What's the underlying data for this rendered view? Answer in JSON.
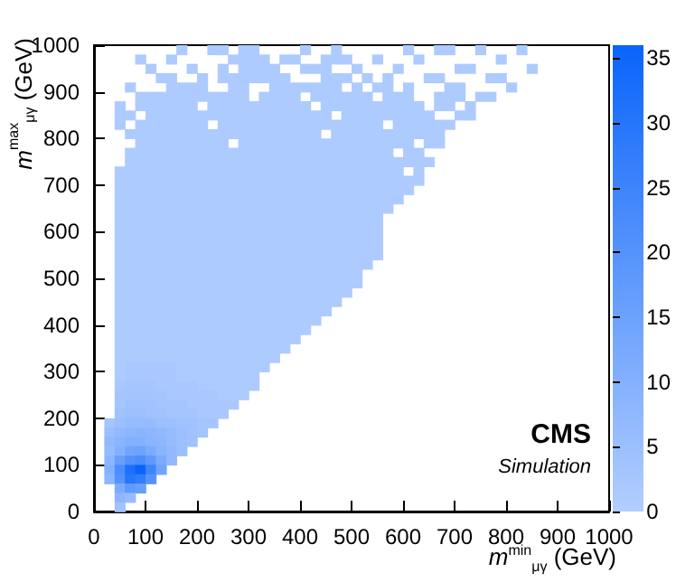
{
  "chart_data": {
    "type": "heatmap",
    "xlabel": "m$^{min}$$_{μγ}$ (GeV)",
    "ylabel": "m$^{max}$$_{μγ}$ (GeV)",
    "annotations": [
      "CMS",
      "Simulation"
    ],
    "xlim": [
      0,
      1000
    ],
    "xticks": [
      0,
      100,
      200,
      300,
      400,
      500,
      600,
      700,
      800,
      900,
      1000
    ],
    "ylim": [
      0,
      1000
    ],
    "yticks": [
      0,
      100,
      200,
      300,
      400,
      500,
      600,
      700,
      800,
      900,
      1000
    ],
    "clim": [
      0,
      36
    ],
    "cticks": [
      0,
      5,
      10,
      15,
      20,
      25,
      30,
      35
    ],
    "cells": [
      [
        null,
        null,
        null,
        null,
        null,
        null,
        null,
        null,
        1,
        null,
        null,
        1,
        1,
        null,
        1,
        1,
        null,
        null,
        null,
        null,
        1,
        null,
        null,
        1,
        null,
        null,
        null,
        null,
        null,
        null,
        1,
        null,
        null,
        1,
        1,
        null,
        null,
        1,
        null,
        null,
        null,
        1,
        null,
        null,
        null,
        null,
        null,
        null,
        null,
        null
      ],
      [
        null,
        null,
        null,
        null,
        1,
        null,
        null,
        1,
        null,
        null,
        null,
        null,
        null,
        1,
        1,
        1,
        1,
        null,
        1,
        1,
        null,
        null,
        1,
        1,
        1,
        null,
        null,
        1,
        null,
        null,
        null,
        1,
        null,
        null,
        null,
        null,
        null,
        null,
        null,
        1,
        null,
        null,
        null,
        null,
        null,
        null,
        null,
        null,
        null,
        null
      ],
      [
        null,
        null,
        null,
        null,
        null,
        1,
        null,
        null,
        null,
        1,
        null,
        null,
        1,
        null,
        1,
        1,
        1,
        1,
        null,
        null,
        1,
        1,
        1,
        null,
        null,
        1,
        null,
        null,
        null,
        1,
        null,
        null,
        null,
        null,
        null,
        1,
        1,
        null,
        null,
        null,
        null,
        null,
        1,
        null,
        null,
        null,
        null,
        null,
        null,
        null
      ],
      [
        null,
        null,
        null,
        null,
        null,
        null,
        1,
        1,
        null,
        null,
        1,
        null,
        1,
        1,
        1,
        1,
        1,
        1,
        1,
        null,
        null,
        null,
        1,
        1,
        1,
        null,
        1,
        null,
        1,
        null,
        null,
        null,
        1,
        1,
        null,
        null,
        null,
        null,
        1,
        1,
        null,
        null,
        null,
        null,
        null,
        null,
        null,
        null,
        null,
        null
      ],
      [
        null,
        null,
        null,
        1,
        null,
        null,
        null,
        1,
        1,
        1,
        1,
        null,
        null,
        1,
        1,
        null,
        null,
        1,
        1,
        1,
        1,
        1,
        1,
        1,
        null,
        1,
        null,
        1,
        1,
        null,
        1,
        null,
        null,
        null,
        1,
        1,
        null,
        null,
        null,
        null,
        1,
        null,
        null,
        null,
        null,
        null,
        null,
        null,
        null,
        null
      ],
      [
        null,
        null,
        null,
        null,
        1,
        1,
        1,
        1,
        1,
        1,
        1,
        1,
        1,
        1,
        1,
        null,
        1,
        1,
        1,
        1,
        null,
        1,
        1,
        1,
        1,
        1,
        1,
        null,
        1,
        1,
        1,
        null,
        null,
        1,
        1,
        1,
        null,
        1,
        1,
        null,
        null,
        null,
        null,
        null,
        null,
        null,
        null,
        null,
        null,
        null
      ],
      [
        null,
        null,
        1,
        null,
        1,
        1,
        1,
        1,
        1,
        1,
        null,
        1,
        1,
        1,
        1,
        1,
        1,
        1,
        1,
        1,
        1,
        null,
        1,
        1,
        1,
        1,
        1,
        1,
        1,
        1,
        1,
        1,
        null,
        1,
        1,
        null,
        1,
        null,
        null,
        null,
        null,
        null,
        null,
        null,
        null,
        null,
        null,
        null,
        null,
        null
      ],
      [
        null,
        null,
        1,
        1,
        null,
        1,
        1,
        1,
        1,
        1,
        1,
        1,
        1,
        1,
        1,
        1,
        1,
        1,
        1,
        1,
        1,
        1,
        1,
        null,
        1,
        1,
        1,
        1,
        1,
        1,
        1,
        1,
        1,
        null,
        null,
        1,
        1,
        null,
        null,
        null,
        null,
        null,
        null,
        null,
        null,
        null,
        null,
        null,
        null,
        null
      ],
      [
        null,
        null,
        1,
        null,
        1,
        1,
        1,
        1,
        1,
        1,
        1,
        null,
        1,
        1,
        1,
        1,
        1,
        1,
        1,
        1,
        1,
        1,
        1,
        1,
        1,
        1,
        1,
        1,
        null,
        1,
        1,
        1,
        1,
        1,
        1,
        null,
        null,
        null,
        null,
        null,
        null,
        null,
        null,
        null,
        null,
        null,
        null,
        null,
        null,
        null
      ],
      [
        null,
        null,
        null,
        1,
        1,
        1,
        1,
        1,
        1,
        1,
        1,
        1,
        1,
        1,
        1,
        1,
        1,
        1,
        1,
        1,
        1,
        1,
        null,
        1,
        1,
        1,
        1,
        1,
        1,
        1,
        1,
        1,
        1,
        1,
        null,
        null,
        null,
        null,
        null,
        null,
        null,
        null,
        null,
        null,
        null,
        null,
        null,
        null,
        null,
        null
      ],
      [
        null,
        null,
        null,
        null,
        1,
        1,
        1,
        1,
        1,
        1,
        1,
        1,
        1,
        null,
        1,
        1,
        1,
        1,
        1,
        1,
        1,
        1,
        1,
        1,
        1,
        1,
        1,
        1,
        1,
        1,
        1,
        null,
        1,
        1,
        null,
        null,
        null,
        null,
        null,
        null,
        null,
        null,
        null,
        null,
        null,
        null,
        null,
        null,
        null,
        null
      ],
      [
        null,
        null,
        null,
        1,
        1,
        1,
        1,
        1,
        1,
        1,
        1,
        1,
        1,
        1,
        1,
        1,
        1,
        1,
        1,
        1,
        1,
        1,
        1,
        1,
        1,
        1,
        1,
        1,
        1,
        null,
        1,
        1,
        null,
        null,
        null,
        null,
        null,
        null,
        null,
        null,
        null,
        null,
        null,
        null,
        null,
        null,
        null,
        null,
        null,
        null
      ],
      [
        null,
        null,
        null,
        1,
        1,
        1,
        1,
        1,
        1,
        1,
        1,
        1,
        1,
        1,
        1,
        1,
        1,
        1,
        1,
        1,
        1,
        1,
        1,
        1,
        1,
        1,
        1,
        1,
        1,
        1,
        1,
        1,
        1,
        null,
        null,
        null,
        null,
        null,
        null,
        null,
        null,
        null,
        null,
        null,
        null,
        null,
        null,
        null,
        null,
        null
      ],
      [
        null,
        null,
        1,
        1,
        1,
        1,
        1,
        1,
        1,
        1,
        1,
        1,
        1,
        1,
        1,
        1,
        1,
        1,
        1,
        1,
        1,
        1,
        1,
        1,
        1,
        1,
        1,
        1,
        1,
        1,
        null,
        1,
        null,
        null,
        null,
        null,
        null,
        null,
        null,
        null,
        null,
        null,
        null,
        null,
        null,
        null,
        null,
        null,
        null,
        null
      ],
      [
        null,
        null,
        1,
        1,
        1,
        1,
        1,
        1,
        1,
        1,
        1,
        1,
        1,
        1,
        1,
        1,
        1,
        1,
        1,
        1,
        1,
        1,
        1,
        1,
        1,
        1,
        1,
        1,
        1,
        1,
        1,
        1,
        null,
        null,
        null,
        null,
        null,
        null,
        null,
        null,
        null,
        null,
        null,
        null,
        null,
        null,
        null,
        null,
        null,
        null
      ],
      [
        null,
        null,
        1,
        1,
        1,
        1,
        1,
        1,
        1,
        1,
        1,
        1,
        1,
        1,
        1,
        1,
        1,
        1,
        1,
        1,
        1,
        1,
        1,
        1,
        1,
        1,
        1,
        1,
        1,
        1,
        1,
        null,
        null,
        null,
        null,
        null,
        null,
        null,
        null,
        null,
        null,
        null,
        null,
        null,
        null,
        null,
        null,
        null,
        null,
        null
      ],
      [
        null,
        null,
        1,
        1,
        1,
        1,
        1,
        1,
        1,
        1,
        1,
        1,
        1,
        1,
        1,
        1,
        1,
        1,
        1,
        1,
        1,
        1,
        1,
        1,
        1,
        1,
        1,
        1,
        1,
        1,
        null,
        null,
        null,
        null,
        null,
        null,
        null,
        null,
        null,
        null,
        null,
        null,
        null,
        null,
        null,
        null,
        null,
        null,
        null,
        null
      ],
      [
        null,
        null,
        1,
        1,
        1,
        1,
        1,
        1,
        1,
        1,
        1,
        1,
        1,
        1,
        1,
        1,
        1,
        1,
        1,
        1,
        1,
        1,
        1,
        1,
        1,
        1,
        1,
        1,
        1,
        null,
        null,
        null,
        null,
        null,
        null,
        null,
        null,
        null,
        null,
        null,
        null,
        null,
        null,
        null,
        null,
        null,
        null,
        null,
        null,
        null
      ],
      [
        null,
        null,
        1,
        1,
        1,
        1,
        1,
        1,
        1,
        1,
        1,
        1,
        1,
        1,
        1,
        1,
        1,
        1,
        1,
        1,
        1,
        1,
        1,
        1,
        1,
        1,
        1,
        1,
        null,
        null,
        null,
        null,
        null,
        null,
        null,
        null,
        null,
        null,
        null,
        null,
        null,
        null,
        null,
        null,
        null,
        null,
        null,
        null,
        null,
        null
      ],
      [
        null,
        null,
        1,
        1,
        1,
        1,
        1,
        1,
        1,
        1,
        1,
        1,
        1,
        1,
        1,
        1,
        1,
        1,
        1,
        1,
        1,
        1,
        1,
        1,
        1,
        1,
        1,
        1,
        null,
        null,
        null,
        null,
        null,
        null,
        null,
        null,
        null,
        null,
        null,
        null,
        null,
        null,
        null,
        null,
        null,
        null,
        null,
        null,
        null,
        null
      ],
      [
        null,
        null,
        1,
        1,
        1,
        1,
        1,
        1,
        1,
        1,
        1,
        1,
        1,
        1,
        1,
        1,
        1,
        1,
        1,
        1,
        1,
        1,
        1,
        1,
        1,
        1,
        1,
        1,
        null,
        null,
        null,
        null,
        null,
        null,
        null,
        null,
        null,
        null,
        null,
        null,
        null,
        null,
        null,
        null,
        null,
        null,
        null,
        null,
        null,
        null
      ],
      [
        null,
        null,
        1,
        1,
        1,
        1,
        1,
        1,
        1,
        1,
        1,
        1,
        1,
        1,
        1,
        1,
        1,
        1,
        1,
        1,
        1,
        1,
        1,
        1,
        1,
        1,
        1,
        1,
        null,
        null,
        null,
        null,
        null,
        null,
        null,
        null,
        null,
        null,
        null,
        null,
        null,
        null,
        null,
        null,
        null,
        null,
        null,
        null,
        null,
        null
      ],
      [
        null,
        null,
        1,
        1,
        1,
        1,
        1,
        1,
        1,
        1,
        1,
        1,
        1,
        1,
        1,
        1,
        1,
        1,
        1,
        1,
        1,
        1,
        1,
        1,
        1,
        1,
        1,
        1,
        null,
        null,
        null,
        null,
        null,
        null,
        null,
        null,
        null,
        null,
        null,
        null,
        null,
        null,
        null,
        null,
        null,
        null,
        null,
        null,
        null,
        null
      ],
      [
        null,
        null,
        1,
        1,
        1,
        1,
        1,
        1,
        1,
        1,
        1,
        1,
        1,
        1,
        1,
        1,
        1,
        1,
        1,
        1,
        1,
        1,
        1,
        1,
        1,
        1,
        1,
        null,
        null,
        null,
        null,
        null,
        null,
        null,
        null,
        null,
        null,
        null,
        null,
        null,
        null,
        null,
        null,
        null,
        null,
        null,
        null,
        null,
        null,
        null
      ],
      [
        null,
        null,
        1,
        1,
        1,
        1,
        1,
        1,
        1,
        1,
        1,
        1,
        1,
        1,
        1,
        1,
        1,
        1,
        1,
        1,
        1,
        1,
        1,
        1,
        1,
        1,
        null,
        null,
        null,
        null,
        null,
        null,
        null,
        null,
        null,
        null,
        null,
        null,
        null,
        null,
        null,
        null,
        null,
        null,
        null,
        null,
        null,
        null,
        null,
        null
      ],
      [
        null,
        null,
        1,
        1,
        1,
        1,
        1,
        1,
        1,
        1,
        1,
        1,
        1,
        1,
        1,
        1,
        1,
        1,
        1,
        1,
        1,
        1,
        1,
        1,
        1,
        1,
        null,
        null,
        null,
        null,
        null,
        null,
        null,
        null,
        null,
        null,
        null,
        null,
        null,
        null,
        null,
        null,
        null,
        null,
        null,
        null,
        null,
        null,
        null,
        null
      ],
      [
        null,
        null,
        1,
        1,
        1,
        1,
        1,
        1,
        1,
        1,
        1,
        1,
        1,
        1,
        1,
        1,
        1,
        1,
        1,
        1,
        1,
        1,
        1,
        1,
        1,
        null,
        null,
        null,
        null,
        null,
        null,
        null,
        null,
        null,
        null,
        null,
        null,
        null,
        null,
        null,
        null,
        null,
        null,
        null,
        null,
        null,
        null,
        null,
        null,
        null
      ],
      [
        null,
        null,
        1,
        1,
        1,
        1,
        1,
        1,
        1,
        1,
        1,
        1,
        1,
        1,
        1,
        1,
        1,
        1,
        1,
        1,
        1,
        1,
        1,
        1,
        null,
        null,
        null,
        null,
        null,
        null,
        null,
        null,
        null,
        null,
        null,
        null,
        null,
        null,
        null,
        null,
        null,
        null,
        null,
        null,
        null,
        null,
        null,
        null,
        null,
        null
      ],
      [
        null,
        null,
        1,
        1,
        1,
        1,
        1,
        1,
        1,
        1,
        1,
        1,
        1,
        1,
        1,
        1,
        1,
        1,
        1,
        1,
        1,
        1,
        1,
        null,
        null,
        null,
        null,
        null,
        null,
        null,
        null,
        null,
        null,
        null,
        null,
        null,
        null,
        null,
        null,
        null,
        null,
        null,
        null,
        null,
        null,
        null,
        null,
        null,
        null,
        null
      ],
      [
        null,
        null,
        1,
        1,
        1,
        1,
        1,
        1,
        1,
        1,
        1,
        1,
        1,
        1,
        1,
        1,
        1,
        1,
        1,
        1,
        1,
        1,
        null,
        null,
        null,
        null,
        null,
        null,
        null,
        null,
        null,
        null,
        null,
        null,
        null,
        null,
        null,
        null,
        null,
        null,
        null,
        null,
        null,
        null,
        null,
        null,
        null,
        null,
        null,
        null
      ],
      [
        null,
        null,
        1,
        1,
        1,
        1,
        1,
        1,
        1,
        1,
        1,
        1,
        1,
        1,
        1,
        1,
        1,
        1,
        1,
        1,
        1,
        null,
        null,
        null,
        null,
        null,
        null,
        null,
        null,
        null,
        null,
        null,
        null,
        null,
        null,
        null,
        null,
        null,
        null,
        null,
        null,
        null,
        null,
        null,
        null,
        null,
        null,
        null,
        null,
        null
      ],
      [
        null,
        null,
        1,
        1,
        1,
        1,
        1,
        1,
        1,
        1,
        1,
        1,
        1,
        1,
        1,
        1,
        1,
        1,
        1,
        1,
        null,
        null,
        null,
        null,
        null,
        null,
        null,
        null,
        null,
        null,
        null,
        null,
        null,
        null,
        null,
        null,
        null,
        null,
        null,
        null,
        null,
        null,
        null,
        null,
        null,
        null,
        null,
        null,
        null,
        null
      ],
      [
        null,
        null,
        1,
        1,
        1,
        1,
        1,
        1,
        1,
        1,
        1,
        1,
        1,
        1,
        1,
        1,
        1,
        1,
        1,
        null,
        null,
        null,
        null,
        null,
        null,
        null,
        null,
        null,
        null,
        null,
        null,
        null,
        null,
        null,
        null,
        null,
        null,
        null,
        null,
        null,
        null,
        null,
        null,
        null,
        null,
        null,
        null,
        null,
        null,
        null
      ],
      [
        null,
        null,
        1,
        1,
        1,
        1,
        1,
        1,
        1,
        1,
        1,
        1,
        1,
        1,
        1,
        1,
        1,
        1,
        null,
        null,
        null,
        null,
        null,
        null,
        null,
        null,
        null,
        null,
        null,
        null,
        null,
        null,
        null,
        null,
        null,
        null,
        null,
        null,
        null,
        null,
        null,
        null,
        null,
        null,
        null,
        null,
        null,
        null,
        null,
        null
      ],
      [
        null,
        null,
        1,
        2,
        2,
        2,
        2,
        2,
        1,
        1,
        1,
        1,
        1,
        1,
        1,
        1,
        1,
        null,
        null,
        null,
        null,
        null,
        null,
        null,
        null,
        null,
        null,
        null,
        null,
        null,
        null,
        null,
        null,
        null,
        null,
        null,
        null,
        null,
        null,
        null,
        null,
        null,
        null,
        null,
        null,
        null,
        null,
        null,
        null,
        null
      ],
      [
        null,
        null,
        1,
        2,
        2,
        2,
        2,
        2,
        1,
        1,
        1,
        1,
        1,
        1,
        1,
        1,
        null,
        null,
        null,
        null,
        null,
        null,
        null,
        null,
        null,
        null,
        null,
        null,
        null,
        null,
        null,
        null,
        null,
        null,
        null,
        null,
        null,
        null,
        null,
        null,
        null,
        null,
        null,
        null,
        null,
        null,
        null,
        null,
        null,
        null
      ],
      [
        null,
        null,
        2,
        3,
        3,
        3,
        2,
        2,
        2,
        2,
        1,
        1,
        1,
        1,
        1,
        1,
        null,
        null,
        null,
        null,
        null,
        null,
        null,
        null,
        null,
        null,
        null,
        null,
        null,
        null,
        null,
        null,
        null,
        null,
        null,
        null,
        null,
        null,
        null,
        null,
        null,
        null,
        null,
        null,
        null,
        null,
        null,
        null,
        null,
        null
      ],
      [
        null,
        null,
        3,
        3,
        3,
        3,
        3,
        2,
        2,
        2,
        2,
        2,
        1,
        1,
        1,
        null,
        null,
        null,
        null,
        null,
        null,
        null,
        null,
        null,
        null,
        null,
        null,
        null,
        null,
        null,
        null,
        null,
        null,
        null,
        null,
        null,
        null,
        null,
        null,
        null,
        null,
        null,
        null,
        null,
        null,
        null,
        null,
        null,
        null,
        null
      ],
      [
        null,
        null,
        3,
        4,
        4,
        4,
        3,
        3,
        3,
        2,
        2,
        2,
        2,
        2,
        null,
        null,
        null,
        null,
        null,
        null,
        null,
        null,
        null,
        null,
        null,
        null,
        null,
        null,
        null,
        null,
        null,
        null,
        null,
        null,
        null,
        null,
        null,
        null,
        null,
        null,
        null,
        null,
        null,
        null,
        null,
        null,
        null,
        null,
        null,
        null
      ],
      [
        null,
        null,
        4,
        5,
        5,
        4,
        4,
        3,
        3,
        3,
        2,
        2,
        2,
        null,
        null,
        null,
        null,
        null,
        null,
        null,
        null,
        null,
        null,
        null,
        null,
        null,
        null,
        null,
        null,
        null,
        null,
        null,
        null,
        null,
        null,
        null,
        null,
        null,
        null,
        null,
        null,
        null,
        null,
        null,
        null,
        null,
        null,
        null,
        null,
        null
      ],
      [
        null,
        3,
        5,
        6,
        6,
        6,
        5,
        5,
        4,
        4,
        3,
        3,
        null,
        null,
        null,
        null,
        null,
        null,
        null,
        null,
        null,
        null,
        null,
        null,
        null,
        null,
        null,
        null,
        null,
        null,
        null,
        null,
        null,
        null,
        null,
        null,
        null,
        null,
        null,
        null,
        null,
        null,
        null,
        null,
        null,
        null,
        null,
        null,
        null,
        null
      ],
      [
        null,
        5,
        7,
        8,
        9,
        8,
        7,
        6,
        5,
        4,
        3,
        null,
        null,
        null,
        null,
        null,
        null,
        null,
        null,
        null,
        null,
        null,
        null,
        null,
        null,
        null,
        null,
        null,
        null,
        null,
        null,
        null,
        null,
        null,
        null,
        null,
        null,
        null,
        null,
        null,
        null,
        null,
        null,
        null,
        null,
        null,
        null,
        null,
        null,
        null
      ],
      [
        null,
        7,
        9,
        10,
        10,
        9,
        8,
        6,
        5,
        4,
        null,
        null,
        null,
        null,
        null,
        null,
        null,
        null,
        null,
        null,
        null,
        null,
        null,
        null,
        null,
        null,
        null,
        null,
        null,
        null,
        null,
        null,
        null,
        null,
        null,
        null,
        null,
        null,
        null,
        null,
        null,
        null,
        null,
        null,
        null,
        null,
        null,
        null,
        null,
        null
      ],
      [
        null,
        6,
        10,
        14,
        15,
        12,
        9,
        7,
        5,
        null,
        null,
        null,
        null,
        null,
        null,
        null,
        null,
        null,
        null,
        null,
        null,
        null,
        null,
        null,
        null,
        null,
        null,
        null,
        null,
        null,
        null,
        null,
        null,
        null,
        null,
        null,
        null,
        null,
        null,
        null,
        null,
        null,
        null,
        null,
        null,
        null,
        null,
        null,
        null,
        null
      ],
      [
        null,
        8,
        16,
        20,
        22,
        18,
        12,
        7,
        null,
        null,
        null,
        null,
        null,
        null,
        null,
        null,
        null,
        null,
        null,
        null,
        null,
        null,
        null,
        null,
        null,
        null,
        null,
        null,
        null,
        null,
        null,
        null,
        null,
        null,
        null,
        null,
        null,
        null,
        null,
        null,
        null,
        null,
        null,
        null,
        null,
        null,
        null,
        null,
        null,
        null
      ],
      [
        null,
        10,
        22,
        32,
        36,
        25,
        14,
        null,
        null,
        null,
        null,
        null,
        null,
        null,
        null,
        null,
        null,
        null,
        null,
        null,
        null,
        null,
        null,
        null,
        null,
        null,
        null,
        null,
        null,
        null,
        null,
        null,
        null,
        null,
        null,
        null,
        null,
        null,
        null,
        null,
        null,
        null,
        null,
        null,
        null,
        null,
        null,
        null,
        null,
        null
      ],
      [
        null,
        8,
        20,
        30,
        28,
        20,
        null,
        null,
        null,
        null,
        null,
        null,
        null,
        null,
        null,
        null,
        null,
        null,
        null,
        null,
        null,
        null,
        null,
        null,
        null,
        null,
        null,
        null,
        null,
        null,
        null,
        null,
        null,
        null,
        null,
        null,
        null,
        null,
        null,
        null,
        null,
        null,
        null,
        null,
        null,
        null,
        null,
        null,
        null,
        null
      ],
      [
        null,
        null,
        12,
        18,
        16,
        null,
        null,
        null,
        null,
        null,
        null,
        null,
        null,
        null,
        null,
        null,
        null,
        null,
        null,
        null,
        null,
        null,
        null,
        null,
        null,
        null,
        null,
        null,
        null,
        null,
        null,
        null,
        null,
        null,
        null,
        null,
        null,
        null,
        null,
        null,
        null,
        null,
        null,
        null,
        null,
        null,
        null,
        null,
        null,
        null
      ],
      [
        null,
        null,
        8,
        6,
        null,
        null,
        null,
        null,
        null,
        null,
        null,
        null,
        null,
        null,
        null,
        null,
        null,
        null,
        null,
        null,
        null,
        null,
        null,
        null,
        null,
        null,
        null,
        null,
        null,
        null,
        null,
        null,
        null,
        null,
        null,
        null,
        null,
        null,
        null,
        null,
        null,
        null,
        null,
        null,
        null,
        null,
        null,
        null,
        null,
        null
      ],
      [
        null,
        null,
        4,
        null,
        null,
        null,
        null,
        null,
        null,
        null,
        null,
        null,
        null,
        null,
        null,
        null,
        null,
        null,
        null,
        null,
        null,
        null,
        null,
        null,
        null,
        null,
        null,
        null,
        null,
        null,
        null,
        null,
        null,
        null,
        null,
        null,
        null,
        null,
        null,
        null,
        null,
        null,
        null,
        null,
        null,
        null,
        null,
        null,
        null,
        null
      ]
    ]
  }
}
